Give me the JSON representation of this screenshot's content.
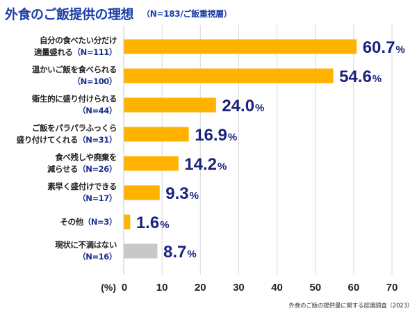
{
  "header": {
    "title": "外食のご飯提供の理想",
    "subtitle": "（N=183/ご飯重視層）"
  },
  "footnote": "外食のご飯の提供量に関する認識調査（2023）",
  "colors": {
    "title": "#1c3fa8",
    "bar": "#ffb300",
    "bar_neutral": "#c8c8c8",
    "value_label": "#1a237e",
    "n_label": "#1a2d8a",
    "grid": "#d8d8d8"
  },
  "chart_data": {
    "type": "bar",
    "orientation": "horizontal",
    "title": "外食のご飯提供の理想",
    "subtitle": "（N=183/ご飯重視層）",
    "xlabel": "(%)",
    "ylabel": "",
    "xlim": [
      0,
      70
    ],
    "xticks": [
      0,
      10,
      20,
      30,
      40,
      50,
      60,
      70
    ],
    "xtick_labels": [
      "0",
      "10",
      "20",
      "30",
      "40",
      "50",
      "60",
      "70"
    ],
    "grid": true,
    "categories": [
      {
        "lines": [
          "自分の食べたい分だけ",
          "適量盛れる"
        ],
        "n": "（N=111）",
        "n_inline": true
      },
      {
        "lines": [
          "温かいご飯を食べられる"
        ],
        "n": "（N=100）",
        "n_inline": false
      },
      {
        "lines": [
          "衛生的に盛り付けられる"
        ],
        "n": "（N=44）",
        "n_inline": false
      },
      {
        "lines": [
          "ご飯をパラパラふっくら",
          "盛り付けてくれる"
        ],
        "n": "（N=31）",
        "n_inline": true
      },
      {
        "lines": [
          "食べ残しや廃棄を",
          "減らせる"
        ],
        "n": "（N=26）",
        "n_inline": true
      },
      {
        "lines": [
          "素早く盛付けできる"
        ],
        "n": "（N=17）",
        "n_inline": false
      },
      {
        "lines": [
          "その他"
        ],
        "n": "（N=3）",
        "n_inline": true
      },
      {
        "lines": [
          "現状に不満はない"
        ],
        "n": "（N=16）",
        "n_inline": false
      }
    ],
    "values": [
      60.7,
      54.6,
      24.0,
      16.9,
      14.2,
      9.3,
      1.6,
      8.7
    ],
    "value_labels": [
      "60.7",
      "54.6",
      "24.0",
      "16.9",
      "14.2",
      "9.3",
      "1.6",
      "8.7"
    ],
    "value_suffix": "%",
    "highlight": [
      true,
      true,
      true,
      true,
      true,
      true,
      true,
      false
    ]
  }
}
